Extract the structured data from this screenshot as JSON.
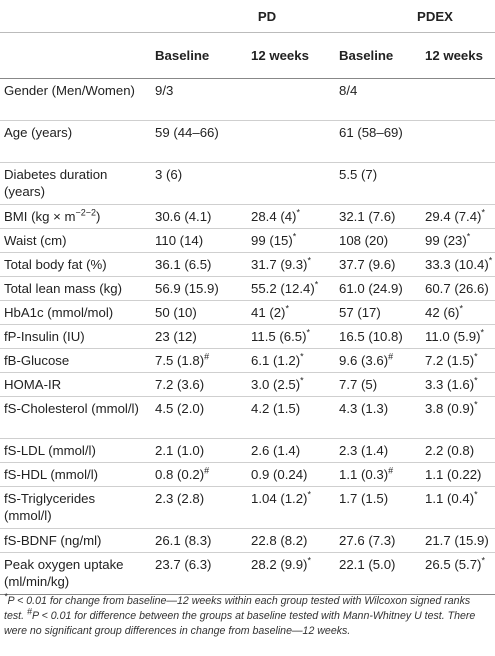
{
  "groups": {
    "pd": "PD",
    "pdex": "PDEX"
  },
  "subheaders": {
    "baseline": "Baseline",
    "weeks12": "12 weeks"
  },
  "rows": [
    {
      "label": "Gender (Men/Women)",
      "pd_base": "9/3",
      "pd_12": "",
      "pdex_base": "8/4",
      "pdex_12": ""
    },
    {
      "label": "Age (years)",
      "pd_base": "59 (44–66)",
      "pd_12": "",
      "pdex_base": "61 (58–69)",
      "pdex_12": ""
    },
    {
      "label": "Diabetes duration (years)",
      "pd_base": "3 (6)",
      "pd_12": "",
      "pdex_base": "5.5 (7)",
      "pdex_12": ""
    },
    {
      "label": "BMI (kg × m",
      "label_sup": "−2",
      "label_end": ")",
      "pd_base": "30.6 (4.1)",
      "pd_12": "28.4 (4)",
      "pd_12_sup": "*",
      "pdex_base": "32.1 (7.6)",
      "pdex_12": "29.4 (7.4)",
      "pdex_12_sup": "*"
    },
    {
      "label": "Waist (cm)",
      "pd_base": "110 (14)",
      "pd_12": "99 (15)",
      "pd_12_sup": "*",
      "pdex_base": "108 (20)",
      "pdex_12": "99 (23)",
      "pdex_12_sup": "*"
    },
    {
      "label": "Total body fat (%)",
      "pd_base": "36.1 (6.5)",
      "pd_12": "31.7 (9.3)",
      "pd_12_sup": "*",
      "pdex_base": "37.7 (9.6)",
      "pdex_12": "33.3 (10.4)",
      "pdex_12_sup": "*"
    },
    {
      "label": "Total lean mass (kg)",
      "pd_base": "56.9 (15.9)",
      "pd_12": "55.2 (12.4)",
      "pd_12_sup": "*",
      "pdex_base": "61.0 (24.9)",
      "pdex_12": "60.7 (26.6)"
    },
    {
      "label": "HbA1c (mmol/mol)",
      "pd_base": "50 (10)",
      "pd_12": "41 (2)",
      "pd_12_sup": "*",
      "pdex_base": "57 (17)",
      "pdex_12": "42 (6)",
      "pdex_12_sup": "*"
    },
    {
      "label": "fP-Insulin (IU)",
      "pd_base": "23 (12)",
      "pd_12": "11.5 (6.5)",
      "pd_12_sup": "*",
      "pdex_base": "16.5 (10.8)",
      "pdex_12": "11.0 (5.9)",
      "pdex_12_sup": "*"
    },
    {
      "label": "fB-Glucose",
      "pd_base": "7.5 (1.8)",
      "pd_base_sup": "#",
      "pd_12": "6.1 (1.2)",
      "pd_12_sup": "*",
      "pdex_base": "9.6 (3.6)",
      "pdex_base_sup": "#",
      "pdex_12": "7.2 (1.5)",
      "pdex_12_sup": "*"
    },
    {
      "label": "HOMA-IR",
      "pd_base": "7.2 (3.6)",
      "pd_12": "3.0 (2.5)",
      "pd_12_sup": "*",
      "pdex_base": "7.7 (5)",
      "pdex_12": "3.3 (1.6)",
      "pdex_12_sup": "*"
    },
    {
      "label": "fS-Cholesterol (mmol/l)",
      "pd_base": "4.5 (2.0)",
      "pd_12": "4.2 (1.5)",
      "pdex_base": "4.3 (1.3)",
      "pdex_12": "3.8 (0.9)",
      "pdex_12_sup": "*"
    },
    {
      "label": "fS-LDL (mmol/l)",
      "pd_base": "2.1 (1.0)",
      "pd_12": "2.6 (1.4)",
      "pdex_base": "2.3 (1.4)",
      "pdex_12": "2.2 (0.8)"
    },
    {
      "label": "fS-HDL (mmol/l)",
      "pd_base": "0.8 (0.2)",
      "pd_base_sup": "#",
      "pd_12": "0.9 (0.24)",
      "pdex_base": "1.1 (0.3)",
      "pdex_base_sup": "#",
      "pdex_12": "1.1 (0.22)"
    },
    {
      "label": "fS-Triglycerides (mmol/l)",
      "pd_base": "2.3 (2.8)",
      "pd_12": "1.04 (1.2)",
      "pd_12_sup": "*",
      "pdex_base": "1.7 (1.5)",
      "pdex_12": "1.1 (0.4)",
      "pdex_12_sup": "*"
    },
    {
      "label": "fS-BDNF (ng/ml)",
      "pd_base": "26.1 (8.3)",
      "pd_12": "22.8 (8.2)",
      "pdex_base": "27.6 (7.3)",
      "pdex_12": "21.7 (15.9)"
    },
    {
      "label": "Peak oxygen uptake (ml/min/kg)",
      "pd_base": "23.7 (6.3)",
      "pd_12": "28.2 (9.9)",
      "pd_12_sup": "*",
      "pdex_base": "22.1 (5.0)",
      "pdex_12": "26.5 (5.7)",
      "pdex_12_sup": "*"
    }
  ],
  "footnote": {
    "star": "*",
    "p1": "P < 0.01 for change from baseline—12 weeks within each group tested with Wilcoxon signed ranks test. ",
    "hash": "#",
    "p2": "P < 0.01 for difference between the groups at baseline tested with Mann-Whitney U test. There were no significant group differences in change from baseline—12 weeks."
  }
}
